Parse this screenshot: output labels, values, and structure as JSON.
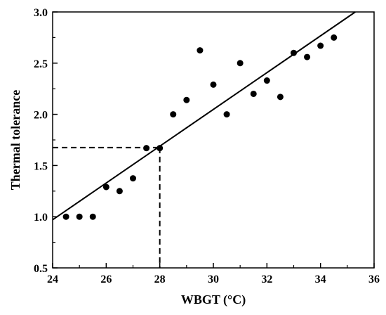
{
  "chart_data": {
    "type": "scatter",
    "xlabel": "WBGT (°C)",
    "ylabel": "Thermal tolerance",
    "xlim": [
      24,
      36
    ],
    "ylim": [
      0.5,
      3.0
    ],
    "xticks": [
      24,
      26,
      28,
      30,
      32,
      34,
      36
    ],
    "yticks": [
      0.5,
      1.0,
      1.5,
      2.0,
      2.5,
      3.0
    ],
    "x_tick_labels": [
      "24",
      "26",
      "28",
      "30",
      "32",
      "34",
      "36"
    ],
    "y_tick_labels": [
      "0.5",
      "1.0",
      "1.5",
      "2.0",
      "2.5",
      "3.0"
    ],
    "grid": false,
    "points": [
      [
        24.5,
        1.0
      ],
      [
        25.0,
        1.0
      ],
      [
        25.5,
        1.0
      ],
      [
        26.0,
        1.29
      ],
      [
        26.5,
        1.25
      ],
      [
        27.0,
        1.375
      ],
      [
        27.5,
        1.67
      ],
      [
        28.0,
        1.67
      ],
      [
        28.5,
        2.0
      ],
      [
        29.0,
        2.14
      ],
      [
        29.5,
        2.625
      ],
      [
        30.0,
        2.29
      ],
      [
        30.5,
        2.0
      ],
      [
        31.0,
        2.5
      ],
      [
        31.5,
        2.2
      ],
      [
        32.0,
        2.33
      ],
      [
        32.5,
        2.17
      ],
      [
        33.0,
        2.6
      ],
      [
        33.5,
        2.56
      ],
      [
        34.0,
        2.67
      ],
      [
        34.5,
        2.75
      ]
    ],
    "fit_line": {
      "x": [
        24,
        35.3
      ],
      "y": [
        0.97,
        3.0
      ]
    },
    "reference_lines": {
      "x": 28,
      "y": 1.675
    },
    "marker_color": "#000000",
    "line_color": "#000000"
  }
}
